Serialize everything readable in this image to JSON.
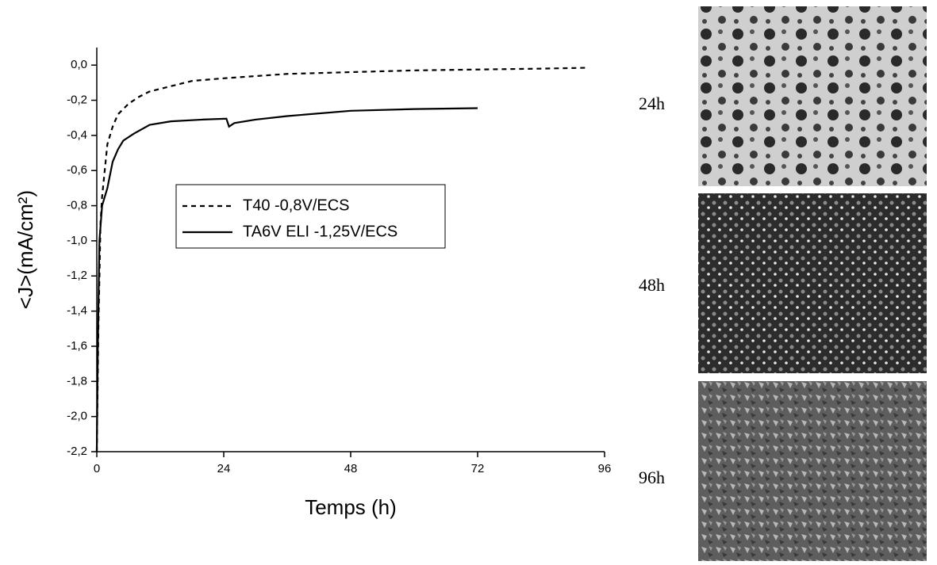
{
  "chart_data": {
    "type": "line",
    "x_label": "Temps (h)",
    "y_label": "<J>(mA/cm²)",
    "xlim": [
      0,
      96
    ],
    "xticks": [
      0,
      24,
      48,
      72,
      96
    ],
    "ylim": [
      -2.2,
      0.1
    ],
    "yticks": [
      {
        "value": -2.2,
        "label": "-2,2"
      },
      {
        "value": -2.0,
        "label": "-2,0"
      },
      {
        "value": -1.8,
        "label": "-1,8"
      },
      {
        "value": -1.6,
        "label": "-1,6"
      },
      {
        "value": -1.4,
        "label": "-1,4"
      },
      {
        "value": -1.2,
        "label": "-1,2"
      },
      {
        "value": -1.0,
        "label": "-1,0"
      },
      {
        "value": -0.8,
        "label": "-0,8"
      },
      {
        "value": -0.6,
        "label": "-0,6"
      },
      {
        "value": -0.4,
        "label": "-0,4"
      },
      {
        "value": -0.2,
        "label": "-0,2"
      },
      {
        "value": 0.0,
        "label": "0,0"
      }
    ],
    "series": [
      {
        "name": "T40 -0,8V/ECS",
        "color": "#000000",
        "linestyle": "dashed",
        "x": [
          0,
          0.3,
          0.7,
          1,
          1.5,
          2,
          3,
          4,
          6,
          8,
          10,
          14,
          18,
          24,
          36,
          48,
          60,
          72,
          84,
          93
        ],
        "values": [
          -2.2,
          -1.5,
          -0.9,
          -0.75,
          -0.6,
          -0.45,
          -0.35,
          -0.28,
          -0.22,
          -0.18,
          -0.15,
          -0.12,
          -0.09,
          -0.075,
          -0.05,
          -0.04,
          -0.03,
          -0.025,
          -0.02,
          -0.015
        ]
      },
      {
        "name": "TA6V ELI -1,25V/ECS",
        "color": "#000000",
        "linestyle": "solid",
        "x": [
          0,
          0.2,
          0.5,
          1,
          2,
          3,
          4,
          5,
          7,
          10,
          14,
          20,
          24.5,
          25,
          26,
          30,
          36,
          48,
          60,
          72
        ],
        "values": [
          -2.2,
          -1.6,
          -1.0,
          -0.8,
          -0.7,
          -0.55,
          -0.48,
          -0.43,
          -0.39,
          -0.34,
          -0.32,
          -0.31,
          -0.305,
          -0.35,
          -0.33,
          -0.31,
          -0.29,
          -0.26,
          -0.25,
          -0.245
        ]
      }
    ]
  },
  "panels": [
    {
      "label": "24h"
    },
    {
      "label": "48h"
    },
    {
      "label": "96h"
    }
  ]
}
